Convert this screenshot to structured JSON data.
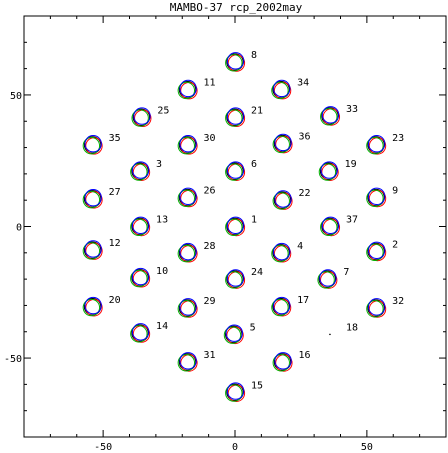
{
  "chart_data": {
    "type": "scatter",
    "title": "MAMBO-37 rcp_2002may",
    "xlabel": "",
    "ylabel": "",
    "xlim": [
      -80,
      80
    ],
    "ylim": [
      -80,
      80
    ],
    "x_ticks": [
      -50,
      0,
      50
    ],
    "y_ticks": [
      -50,
      0,
      50
    ],
    "grid": false,
    "ring_colors": [
      "#000000",
      "#ff0000",
      "#00b000",
      "#0000ff"
    ],
    "points": [
      {
        "id": "1",
        "x": 0,
        "y": 0
      },
      {
        "id": "2",
        "x": 53.5,
        "y": -9.5
      },
      {
        "id": "3",
        "x": -36,
        "y": 21
      },
      {
        "id": "4",
        "x": 17.5,
        "y": -10
      },
      {
        "id": "5",
        "x": -0.5,
        "y": -41
      },
      {
        "id": "6",
        "x": 0,
        "y": 21
      },
      {
        "id": "7",
        "x": 35,
        "y": -20
      },
      {
        "id": "8",
        "x": 0,
        "y": 62.5
      },
      {
        "id": "9",
        "x": 53.5,
        "y": 11
      },
      {
        "id": "10",
        "x": -36,
        "y": -19.5
      },
      {
        "id": "11",
        "x": -18,
        "y": 52
      },
      {
        "id": "12",
        "x": -54,
        "y": -9
      },
      {
        "id": "13",
        "x": -36,
        "y": 0
      },
      {
        "id": "14",
        "x": -36,
        "y": -40.5
      },
      {
        "id": "15",
        "x": 0,
        "y": -63
      },
      {
        "id": "16",
        "x": 18,
        "y": -51.5
      },
      {
        "id": "17",
        "x": 17.5,
        "y": -30.5
      },
      {
        "id": "18",
        "x": 36,
        "y": -41
      },
      {
        "id": "19",
        "x": 35.5,
        "y": 21
      },
      {
        "id": "20",
        "x": -54,
        "y": -30.5
      },
      {
        "id": "21",
        "x": 0,
        "y": 41.5
      },
      {
        "id": "22",
        "x": 18,
        "y": 10
      },
      {
        "id": "23",
        "x": 53.5,
        "y": 31
      },
      {
        "id": "24",
        "x": 0,
        "y": -20
      },
      {
        "id": "25",
        "x": -35.5,
        "y": 41.5
      },
      {
        "id": "26",
        "x": -18,
        "y": 11
      },
      {
        "id": "27",
        "x": -54,
        "y": 10.5
      },
      {
        "id": "28",
        "x": -18,
        "y": -10
      },
      {
        "id": "29",
        "x": -18,
        "y": -31
      },
      {
        "id": "30",
        "x": -18,
        "y": 31
      },
      {
        "id": "31",
        "x": -18,
        "y": -51.5
      },
      {
        "id": "32",
        "x": 53.5,
        "y": -31
      },
      {
        "id": "33",
        "x": 36,
        "y": 42
      },
      {
        "id": "34",
        "x": 17.5,
        "y": 52
      },
      {
        "id": "35",
        "x": -54,
        "y": 31
      },
      {
        "id": "36",
        "x": 18,
        "y": 31.5
      },
      {
        "id": "37",
        "x": 36,
        "y": 0
      }
    ]
  }
}
